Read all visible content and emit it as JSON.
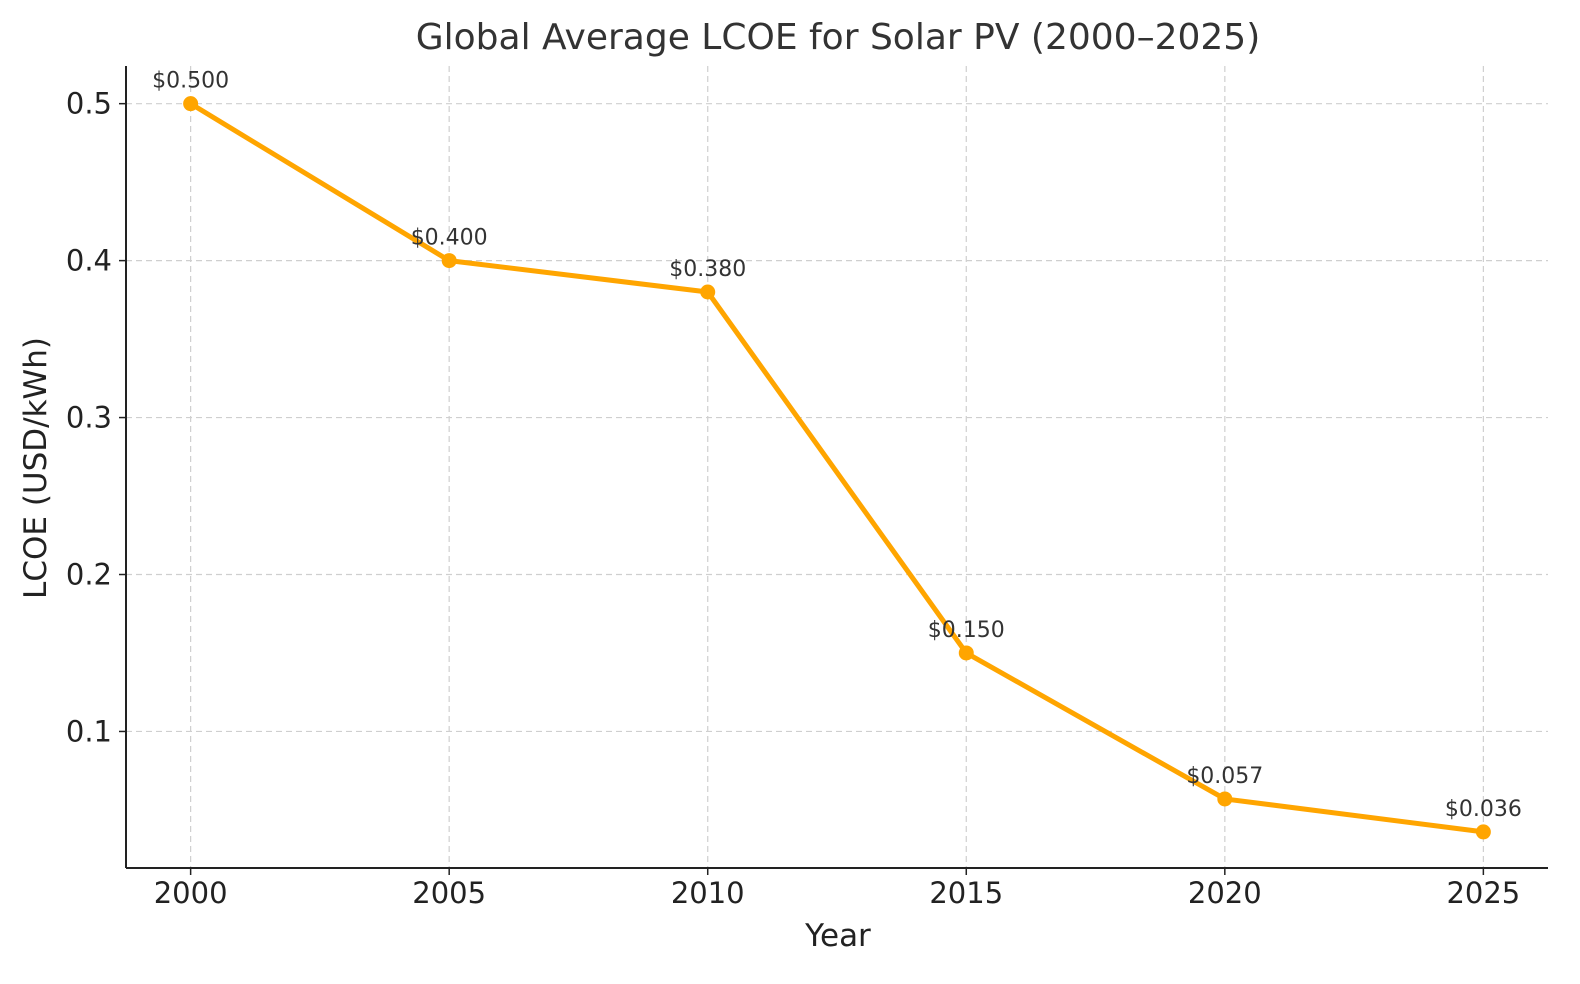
{
  "chart_data": {
    "type": "line",
    "title": "Global Average LCOE for Solar PV (2000–2025)",
    "xlabel": "Year",
    "ylabel": "LCOE (USD/kWh)",
    "x": [
      2000,
      2005,
      2010,
      2015,
      2020,
      2025
    ],
    "series": [
      {
        "values": [
          0.5,
          0.4,
          0.38,
          0.15,
          0.057,
          0.036
        ],
        "data_labels": [
          "$0.500",
          "$0.400",
          "$0.380",
          "$0.150",
          "$0.057",
          "$0.036"
        ],
        "color": "#FFA500",
        "marker": "circle"
      }
    ],
    "xticks": [
      2000,
      2005,
      2010,
      2015,
      2020,
      2025
    ],
    "xtick_labels": [
      "2000",
      "2005",
      "2010",
      "2015",
      "2020",
      "2025"
    ],
    "yticks": [
      0.1,
      0.2,
      0.3,
      0.4,
      0.5
    ],
    "ytick_labels": [
      "0.1",
      "0.2",
      "0.3",
      "0.4",
      "0.5"
    ],
    "xlim": [
      1998.75,
      2026.25
    ],
    "ylim": [
      0.013,
      0.524
    ],
    "grid": true,
    "grid_style": "dashed",
    "axis_color": "#222222",
    "grid_color": "#cfcfcf"
  }
}
